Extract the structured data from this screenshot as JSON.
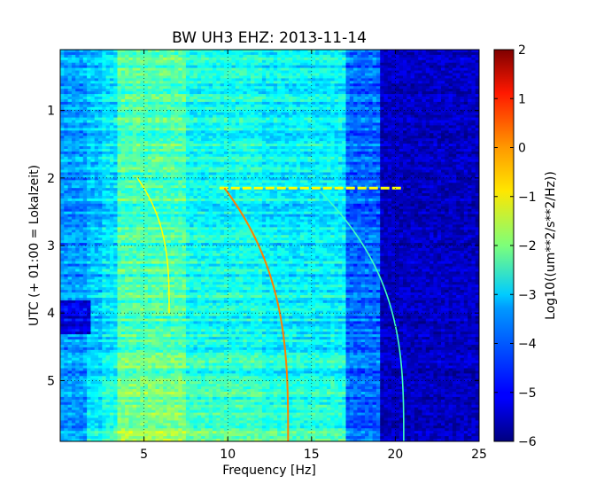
{
  "chart_data": {
    "type": "heatmap",
    "title": "BW UH3 EHZ: 2013-11-14",
    "xlabel": "Frequency [Hz]",
    "ylabel": "UTC (+ 01:00 = Lokalzeit)",
    "xlim": [
      0,
      25
    ],
    "ylim": [
      5.9,
      0.1
    ],
    "x_ticks": [
      5,
      10,
      15,
      20,
      25
    ],
    "y_ticks": [
      1,
      2,
      3,
      4,
      5
    ],
    "grid": true,
    "colormap": "jet",
    "colorbar": {
      "label": "Log10((um**2/s**2/Hz))",
      "min": -6,
      "max": 2,
      "ticks": [
        2,
        1,
        0,
        -1,
        -2,
        -3,
        -4,
        -5,
        -6
      ]
    },
    "tracks": [
      {
        "start_time": 2.0,
        "start_freq": 4.6,
        "end_time": 4.0,
        "end_freq": 6.5,
        "level": -1
      },
      {
        "start_time": 2.15,
        "start_freq": 9.8,
        "end_time": 5.9,
        "end_freq": 13.6,
        "level": 0
      },
      {
        "start_time": 2.2,
        "start_freq": 15.5,
        "end_time": 5.9,
        "end_freq": 20.5,
        "level": -2.5
      }
    ],
    "broadband_line": {
      "time": 2.15,
      "freq_range": [
        9.5,
        20.5
      ],
      "level": -1
    }
  }
}
